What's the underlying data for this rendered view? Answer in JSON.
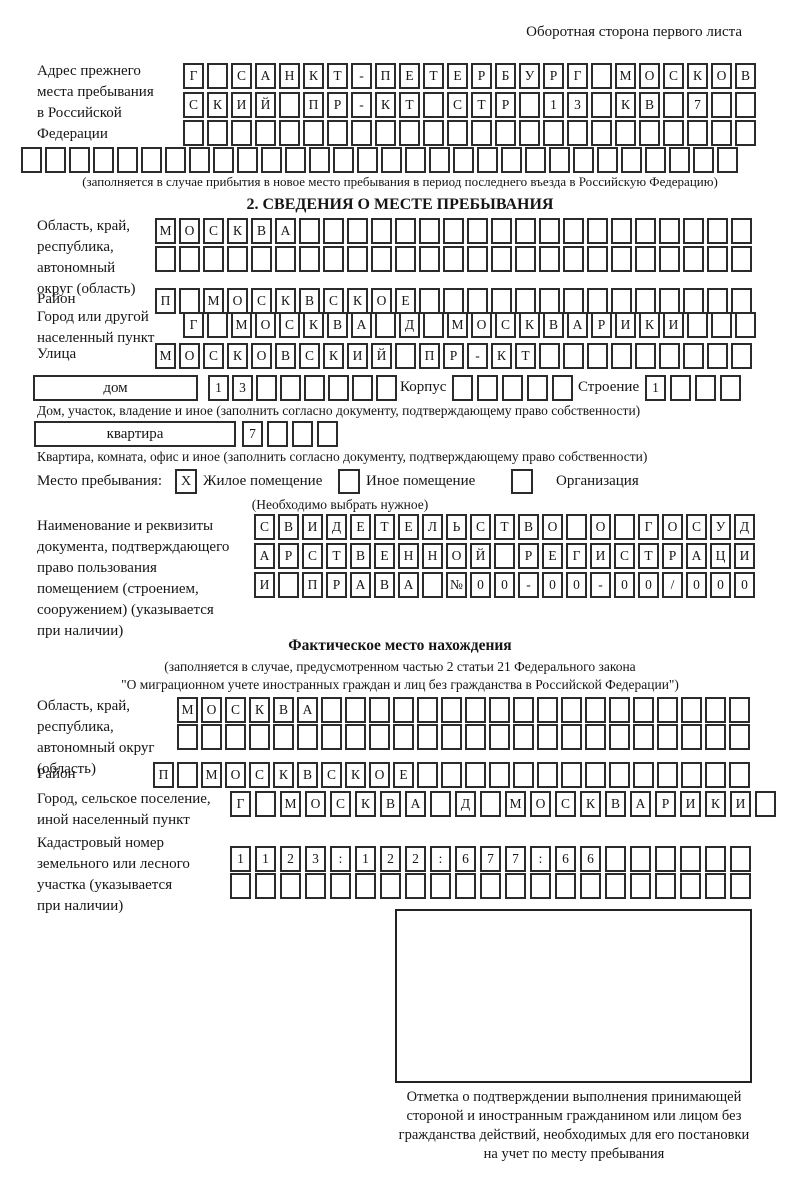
{
  "page": {
    "header_note": "Оборотная сторона первого листа",
    "ink_color": "#151515"
  },
  "prev_address": {
    "label": [
      "Адрес прежнего",
      "места пребывания",
      "в Российской",
      "Федерации"
    ],
    "rows": {
      "r1": [
        "Г",
        "",
        "С",
        "А",
        "Н",
        "К",
        "Т",
        "-",
        "П",
        "Е",
        "Т",
        "Е",
        "Р",
        "Б",
        "У",
        "Р",
        "Г",
        "",
        "М",
        "О",
        "С",
        "К",
        "О",
        "В"
      ],
      "r2": [
        "С",
        "К",
        "И",
        "Й",
        "",
        "П",
        "Р",
        "-",
        "К",
        "Т",
        "",
        "С",
        "Т",
        "Р",
        "",
        "1",
        "3",
        "",
        "К",
        "В",
        "",
        "7",
        "",
        ""
      ],
      "r3": [
        "",
        "",
        "",
        "",
        "",
        "",
        "",
        "",
        "",
        "",
        "",
        "",
        "",
        "",
        "",
        "",
        "",
        "",
        "",
        "",
        "",
        "",
        "",
        ""
      ],
      "r4": [
        "",
        "",
        "",
        "",
        "",
        "",
        "",
        "",
        "",
        "",
        "",
        "",
        "",
        "",
        "",
        "",
        "",
        "",
        "",
        "",
        "",
        "",
        "",
        "",
        "",
        "",
        "",
        "",
        "",
        ""
      ]
    },
    "note": "(заполняется в случае прибытия в новое место пребывания в период последнего въезда в Российскую Федерацию)"
  },
  "section2": {
    "title": "2. СВЕДЕНИЯ О МЕСТЕ ПРЕБЫВАНИЯ",
    "oblast": {
      "label": [
        "Область, край,",
        "республика,",
        "автономный",
        "округ (область)"
      ],
      "rows": {
        "r1": [
          "М",
          "О",
          "С",
          "К",
          "В",
          "А",
          "",
          "",
          "",
          "",
          "",
          "",
          "",
          "",
          "",
          "",
          "",
          "",
          "",
          "",
          "",
          "",
          "",
          "",
          ""
        ],
        "r2": [
          "",
          "",
          "",
          "",
          "",
          "",
          "",
          "",
          "",
          "",
          "",
          "",
          "",
          "",
          "",
          "",
          "",
          "",
          "",
          "",
          "",
          "",
          "",
          "",
          ""
        ]
      }
    },
    "raion": {
      "label": "Район",
      "row": [
        "П",
        "",
        "М",
        "О",
        "С",
        "К",
        "В",
        "С",
        "К",
        "О",
        "Е",
        "",
        "",
        "",
        "",
        "",
        "",
        "",
        "",
        "",
        "",
        "",
        "",
        "",
        ""
      ]
    },
    "gorod": {
      "label": [
        "Город или другой",
        "населенный пункт"
      ],
      "row": [
        "Г",
        "",
        "М",
        "О",
        "С",
        "К",
        "В",
        "А",
        "",
        "Д",
        "",
        "М",
        "О",
        "С",
        "К",
        "В",
        "А",
        "Р",
        "И",
        "К",
        "И",
        "",
        "",
        ""
      ]
    },
    "ulitsa": {
      "label": "Улица",
      "row": [
        "М",
        "О",
        "С",
        "К",
        "О",
        "В",
        "С",
        "К",
        "И",
        "Й",
        "",
        "П",
        "Р",
        "-",
        "К",
        "Т",
        "",
        "",
        "",
        "",
        "",
        "",
        "",
        "",
        ""
      ]
    },
    "dom": {
      "field_label": "дом",
      "cells": [
        "1",
        "3",
        "",
        "",
        "",
        "",
        "",
        ""
      ],
      "korpus_label": "Корпус",
      "korpus_cells": [
        "",
        "",
        "",
        "",
        ""
      ],
      "stroenie_label": "Строение",
      "stroenie_cells": [
        "1",
        "",
        "",
        ""
      ]
    },
    "dom_note": "Дом, участок, владение и иное (заполнить согласно документу, подтверждающему право собственности)",
    "kvartira": {
      "field_label": "квартира",
      "cells": [
        "7",
        "",
        "",
        ""
      ]
    },
    "kvartira_note": "Квартира, комната, офис и иное (заполнить согласно документу, подтверждающему право собственности)",
    "mesto": {
      "label": "Место пребывания:",
      "options": [
        {
          "mark": "X",
          "label": "Жилое помещение"
        },
        {
          "mark": "",
          "label": "Иное помещение"
        },
        {
          "mark": "",
          "label": "Организация"
        }
      ],
      "note": "(Необходимо выбрать нужное)"
    },
    "doc": {
      "label": [
        "Наименование и реквизиты",
        "документа, подтверждающего",
        "право пользования",
        "помещением (строением,",
        "сооружением) (указывается",
        "при наличии)"
      ],
      "rows": {
        "r1": [
          "С",
          "В",
          "И",
          "Д",
          "Е",
          "Т",
          "Е",
          "Л",
          "Ь",
          "С",
          "Т",
          "В",
          "О",
          "",
          "О",
          "",
          "Г",
          "О",
          "С",
          "У",
          "Д"
        ],
        "r2": [
          "А",
          "Р",
          "С",
          "Т",
          "В",
          "Е",
          "Н",
          "Н",
          "О",
          "Й",
          "",
          "Р",
          "Е",
          "Г",
          "И",
          "С",
          "Т",
          "Р",
          "А",
          "Ц",
          "И"
        ],
        "r3": [
          "И",
          "",
          "П",
          "Р",
          "А",
          "В",
          "А",
          "",
          "№",
          "0",
          "0",
          "-",
          "0",
          "0",
          "-",
          "0",
          "0",
          "/",
          "0",
          "0",
          "0"
        ]
      }
    }
  },
  "fact": {
    "title": "Фактическое место нахождения",
    "note_lines": [
      "(заполняется в случае, предусмотренном частью 2 статьи 21 Федерального закона",
      "\"О миграционном учете иностранных граждан и лиц без гражданства в Российской Федерации\")"
    ],
    "oblast": {
      "label": [
        "Область, край,",
        "республика,",
        "автономный округ",
        "(область)"
      ],
      "rows": {
        "r1": [
          "М",
          "О",
          "С",
          "К",
          "В",
          "А",
          "",
          "",
          "",
          "",
          "",
          "",
          "",
          "",
          "",
          "",
          "",
          "",
          "",
          "",
          "",
          "",
          "",
          ""
        ],
        "r2": [
          "",
          "",
          "",
          "",
          "",
          "",
          "",
          "",
          "",
          "",
          "",
          "",
          "",
          "",
          "",
          "",
          "",
          "",
          "",
          "",
          "",
          "",
          "",
          ""
        ]
      }
    },
    "raion": {
      "label": "Район",
      "row": [
        "П",
        "",
        "М",
        "О",
        "С",
        "К",
        "В",
        "С",
        "К",
        "О",
        "Е",
        "",
        "",
        "",
        "",
        "",
        "",
        "",
        "",
        "",
        "",
        "",
        "",
        "",
        ""
      ]
    },
    "gorod": {
      "label": [
        "Город, сельское поселение,",
        "иной населенный пункт"
      ],
      "row": [
        "Г",
        "",
        "М",
        "О",
        "С",
        "К",
        "В",
        "А",
        "",
        "Д",
        "",
        "М",
        "О",
        "С",
        "К",
        "В",
        "А",
        "Р",
        "И",
        "К",
        "И",
        ""
      ]
    },
    "kadastr": {
      "label": [
        "Кадастровый номер",
        "земельного или лесного",
        "участка (указывается",
        "при наличии)"
      ],
      "rows": {
        "r1": [
          "1",
          "1",
          "2",
          "3",
          ":",
          "1",
          "2",
          "2",
          ":",
          "6",
          "7",
          "7",
          ":",
          "6",
          "6",
          "",
          "",
          "",
          "",
          "",
          ""
        ],
        "r2": [
          "",
          "",
          "",
          "",
          "",
          "",
          "",
          "",
          "",
          "",
          "",
          "",
          "",
          "",
          "",
          "",
          "",
          "",
          "",
          "",
          ""
        ]
      }
    },
    "stamp_note": [
      "Отметка о подтверждении выполнения принимающей",
      "стороной и иностранным гражданином или лицом без",
      "гражданства действий, необходимых для его постановки",
      "на учет по месту пребывания"
    ]
  }
}
